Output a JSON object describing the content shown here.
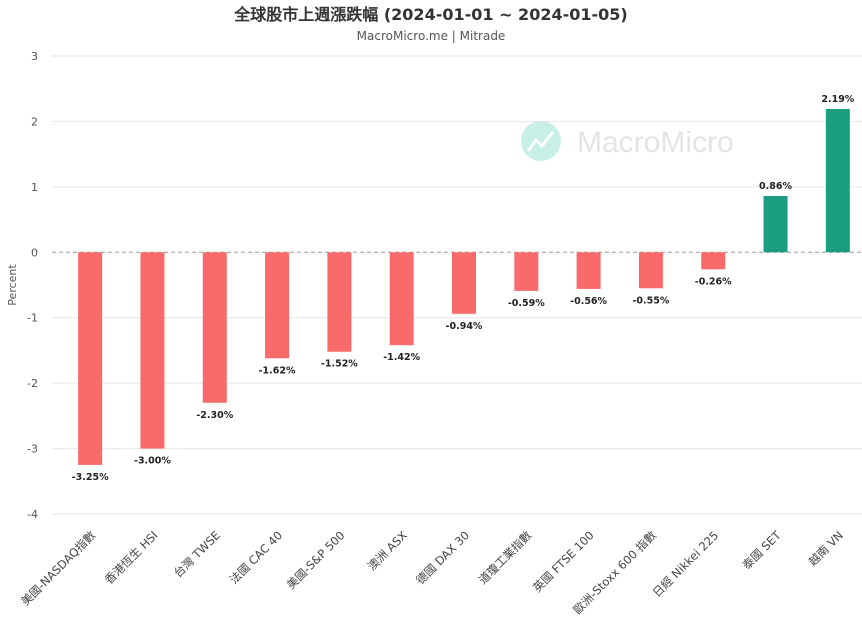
{
  "chart_data": {
    "type": "bar",
    "title": "全球股市上週漲跌幅 (2024-01-01 ~ 2024-01-05)",
    "subtitle": "MacroMicro.me | Mitrade",
    "watermark": "MacroMicro",
    "ylabel": "Percent",
    "ylim": [
      -4,
      3
    ],
    "yticks": [
      3,
      2,
      1,
      0,
      -1,
      -2,
      -3,
      -4
    ],
    "grid": true,
    "categories": [
      "美國-NASDAQ指數",
      "香港恆生 HSI",
      "台灣 TWSE",
      "法國 CAC 40",
      "美國-S&P 500",
      "澳洲 ASX",
      "德國 DAX 30",
      "道瓊工業指數",
      "英國 FTSE 100",
      "歐洲-Stoxx 600 指數",
      "日經 Nikkei 225",
      "泰國 SET",
      "越南 VN"
    ],
    "values": [
      -3.25,
      -3.0,
      -2.3,
      -1.62,
      -1.52,
      -1.42,
      -0.94,
      -0.59,
      -0.56,
      -0.55,
      -0.26,
      0.86,
      2.19
    ],
    "data_labels": [
      "-3.25%",
      "-3.00%",
      "-2.30%",
      "-1.62%",
      "-1.52%",
      "-1.42%",
      "-0.94%",
      "-0.59%",
      "-0.56%",
      "-0.55%",
      "-0.26%",
      "0.86%",
      "2.19%"
    ],
    "colors": {
      "negative": "#f96a6a",
      "positive": "#1a9e7f",
      "watermark_icon": "#c8efe6"
    }
  }
}
